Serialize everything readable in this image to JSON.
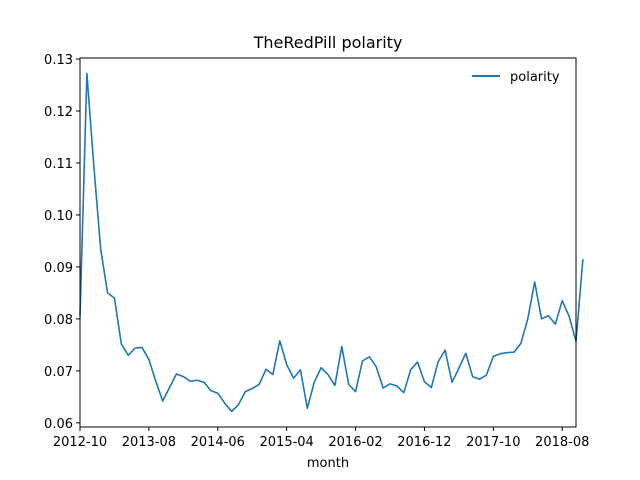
{
  "chart_data": {
    "type": "line",
    "title": "TheRedPill polarity",
    "xlabel": "month",
    "ylabel": "",
    "x_tick_labels": [
      "2012-10",
      "2013-08",
      "2014-06",
      "2015-04",
      "2016-02",
      "2016-12",
      "2017-10",
      "2018-08"
    ],
    "y_tick_labels": [
      "0.06",
      "0.07",
      "0.08",
      "0.09",
      "0.10",
      "0.11",
      "0.12",
      "0.13"
    ],
    "y_ticks": [
      0.06,
      0.07,
      0.08,
      0.09,
      0.1,
      0.11,
      0.12,
      0.13
    ],
    "ylim": [
      0.0592,
      0.1302
    ],
    "xlim": [
      "2012-10",
      "2018-10"
    ],
    "grid": false,
    "legend_position": "top-right",
    "series_color": "#1f77b4",
    "series": [
      {
        "name": "polarity",
        "x": [
          "2012-10",
          "2012-11",
          "2012-12",
          "2013-01",
          "2013-02",
          "2013-03",
          "2013-04",
          "2013-05",
          "2013-06",
          "2013-07",
          "2013-08",
          "2013-09",
          "2013-10",
          "2013-11",
          "2013-12",
          "2014-01",
          "2014-02",
          "2014-03",
          "2014-04",
          "2014-05",
          "2014-06",
          "2014-07",
          "2014-08",
          "2014-09",
          "2014-10",
          "2014-11",
          "2014-12",
          "2015-01",
          "2015-02",
          "2015-03",
          "2015-04",
          "2015-05",
          "2015-06",
          "2015-07",
          "2015-08",
          "2015-09",
          "2015-10",
          "2015-11",
          "2015-12",
          "2016-01",
          "2016-02",
          "2016-03",
          "2016-04",
          "2016-05",
          "2016-06",
          "2016-07",
          "2016-08",
          "2016-09",
          "2016-10",
          "2016-11",
          "2016-12",
          "2017-01",
          "2017-02",
          "2017-03",
          "2017-04",
          "2017-05",
          "2017-06",
          "2017-07",
          "2017-08",
          "2017-09",
          "2017-10",
          "2017-11",
          "2017-12",
          "2018-01",
          "2018-02",
          "2018-03",
          "2018-04",
          "2018-05",
          "2018-06",
          "2018-07",
          "2018-08",
          "2018-09",
          "2018-10",
          "2018-11"
        ],
        "values": [
          0.0805,
          0.1272,
          0.1095,
          0.0935,
          0.085,
          0.084,
          0.0752,
          0.073,
          0.0744,
          0.0745,
          0.0722,
          0.068,
          0.0642,
          0.0668,
          0.0694,
          0.0689,
          0.068,
          0.0682,
          0.0678,
          0.0662,
          0.0657,
          0.0638,
          0.0622,
          0.0635,
          0.066,
          0.0666,
          0.0674,
          0.0703,
          0.0693,
          0.0758,
          0.0712,
          0.0686,
          0.0702,
          0.0628,
          0.0678,
          0.0706,
          0.0693,
          0.0672,
          0.0747,
          0.0674,
          0.066,
          0.0719,
          0.0727,
          0.0708,
          0.0667,
          0.0675,
          0.0671,
          0.0658,
          0.0702,
          0.0717,
          0.0679,
          0.0668,
          0.0718,
          0.074,
          0.0678,
          0.0705,
          0.0734,
          0.0689,
          0.0684,
          0.0692,
          0.0728,
          0.0733,
          0.0735,
          0.0736,
          0.0753,
          0.08,
          0.0871,
          0.08,
          0.0806,
          0.079,
          0.0835,
          0.0805,
          0.0757,
          0.0915
        ]
      }
    ]
  }
}
